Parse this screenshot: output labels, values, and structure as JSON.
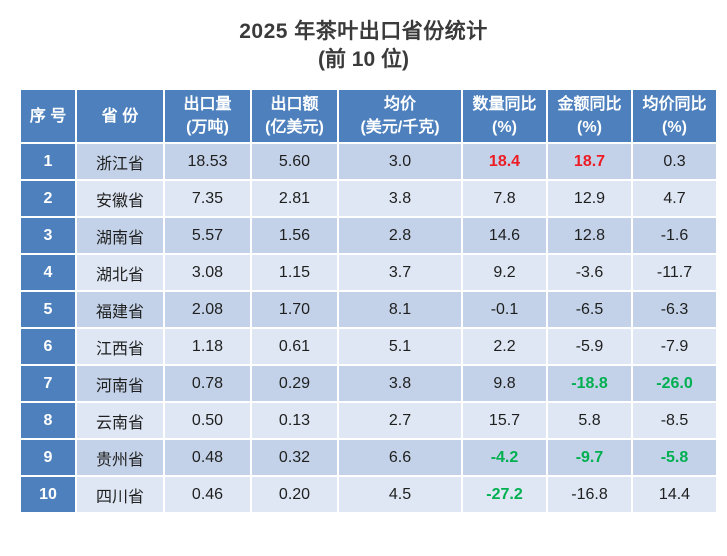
{
  "title": {
    "line1": "2025 年茶叶出口省份统计",
    "line2": "(前 10 位)"
  },
  "colors": {
    "header_bg": "#4d80bd",
    "rank_col_bg": "#4d80bd",
    "header_text": "#ffffff",
    "row_odd_bg": "#c3d2e8",
    "row_even_bg": "#dee7f3",
    "body_text": "#1f1f1f",
    "title_text": "#3a3a3a",
    "highlight_red": "#ed1c24",
    "highlight_green": "#00b050"
  },
  "chart_data": {
    "type": "table",
    "title": "2025 年茶叶出口省份统计",
    "subtitle": "(前 10 位)",
    "columns": [
      {
        "line1": "序 号",
        "line2": ""
      },
      {
        "line1": "省 份",
        "line2": ""
      },
      {
        "line1": "出口量",
        "line2": "(万吨)"
      },
      {
        "line1": "出口额",
        "line2": "(亿美元)"
      },
      {
        "line1": "均价",
        "line2": "(美元/千克)"
      },
      {
        "line1": "数量同比",
        "line2": "(%)"
      },
      {
        "line1": "金额同比",
        "line2": "(%)"
      },
      {
        "line1": "均价同比",
        "line2": "(%)"
      }
    ],
    "rows": [
      {
        "cells": [
          "1",
          "浙江省",
          "18.53",
          "5.60",
          "3.0",
          "18.4",
          "18.7",
          "0.3"
        ],
        "highlights": [
          "",
          "",
          "",
          "",
          "",
          "red",
          "red",
          ""
        ]
      },
      {
        "cells": [
          "2",
          "安徽省",
          "7.35",
          "2.81",
          "3.8",
          "7.8",
          "12.9",
          "4.7"
        ],
        "highlights": [
          "",
          "",
          "",
          "",
          "",
          "",
          "",
          ""
        ]
      },
      {
        "cells": [
          "3",
          "湖南省",
          "5.57",
          "1.56",
          "2.8",
          "14.6",
          "12.8",
          "-1.6"
        ],
        "highlights": [
          "",
          "",
          "",
          "",
          "",
          "",
          "",
          ""
        ]
      },
      {
        "cells": [
          "4",
          "湖北省",
          "3.08",
          "1.15",
          "3.7",
          "9.2",
          "-3.6",
          "-11.7"
        ],
        "highlights": [
          "",
          "",
          "",
          "",
          "",
          "",
          "",
          ""
        ]
      },
      {
        "cells": [
          "5",
          "福建省",
          "2.08",
          "1.70",
          "8.1",
          "-0.1",
          "-6.5",
          "-6.3"
        ],
        "highlights": [
          "",
          "",
          "",
          "",
          "",
          "",
          "",
          ""
        ]
      },
      {
        "cells": [
          "6",
          "江西省",
          "1.18",
          "0.61",
          "5.1",
          "2.2",
          "-5.9",
          "-7.9"
        ],
        "highlights": [
          "",
          "",
          "",
          "",
          "",
          "",
          "",
          ""
        ]
      },
      {
        "cells": [
          "7",
          "河南省",
          "0.78",
          "0.29",
          "3.8",
          "9.8",
          "-18.8",
          "-26.0"
        ],
        "highlights": [
          "",
          "",
          "",
          "",
          "",
          "",
          "green",
          "green"
        ]
      },
      {
        "cells": [
          "8",
          "云南省",
          "0.50",
          "0.13",
          "2.7",
          "15.7",
          "5.8",
          "-8.5"
        ],
        "highlights": [
          "",
          "",
          "",
          "",
          "",
          "",
          "",
          ""
        ]
      },
      {
        "cells": [
          "9",
          "贵州省",
          "0.48",
          "0.32",
          "6.6",
          "-4.2",
          "-9.7",
          "-5.8"
        ],
        "highlights": [
          "",
          "",
          "",
          "",
          "",
          "green",
          "green",
          "green"
        ]
      },
      {
        "cells": [
          "10",
          "四川省",
          "0.46",
          "0.20",
          "4.5",
          "-27.2",
          "-16.8",
          "14.4"
        ],
        "highlights": [
          "",
          "",
          "",
          "",
          "",
          "green",
          "",
          ""
        ]
      }
    ]
  }
}
